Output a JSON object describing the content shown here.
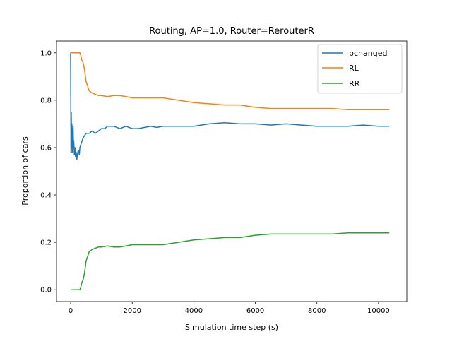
{
  "chart_data": {
    "type": "line",
    "title": "Routing, AP=1.0, Router=RerouterR",
    "xlabel": "Simulation time step (s)",
    "ylabel": "Proportion of cars",
    "xlim": [
      -460,
      10920
    ],
    "ylim": [
      -0.05,
      1.05
    ],
    "xticks": [
      0,
      2000,
      4000,
      6000,
      8000,
      10000
    ],
    "yticks": [
      0.0,
      0.2,
      0.4,
      0.6,
      0.8,
      1.0
    ],
    "xtick_labels": [
      "0",
      "2000",
      "4000",
      "6000",
      "8000",
      "10000"
    ],
    "ytick_labels": [
      "0.0",
      "0.2",
      "0.4",
      "0.6",
      "0.8",
      "1.0"
    ],
    "grid": false,
    "legend_position": "top-right",
    "series": [
      {
        "name": "pchanged",
        "color": "#1f77b4",
        "x": [
          0,
          10,
          20,
          30,
          40,
          50,
          60,
          70,
          80,
          90,
          100,
          120,
          140,
          160,
          180,
          200,
          220,
          250,
          280,
          300,
          350,
          400,
          450,
          500,
          600,
          700,
          800,
          900,
          1000,
          1100,
          1200,
          1400,
          1600,
          1800,
          2000,
          2200,
          2400,
          2600,
          2800,
          3000,
          3500,
          4000,
          4500,
          5000,
          5500,
          6000,
          6500,
          7000,
          7500,
          8000,
          8500,
          9000,
          9500,
          10000,
          10350
        ],
        "y": [
          1.0,
          0.58,
          0.75,
          0.6,
          0.7,
          0.58,
          0.66,
          0.6,
          0.69,
          0.6,
          0.63,
          0.57,
          0.6,
          0.56,
          0.58,
          0.55,
          0.57,
          0.59,
          0.57,
          0.6,
          0.62,
          0.64,
          0.65,
          0.66,
          0.66,
          0.67,
          0.66,
          0.67,
          0.68,
          0.68,
          0.69,
          0.69,
          0.68,
          0.69,
          0.68,
          0.68,
          0.685,
          0.69,
          0.685,
          0.69,
          0.69,
          0.69,
          0.7,
          0.705,
          0.7,
          0.7,
          0.695,
          0.7,
          0.695,
          0.69,
          0.69,
          0.69,
          0.695,
          0.69,
          0.69
        ]
      },
      {
        "name": "RL",
        "color": "#ff7f0e",
        "x": [
          0,
          100,
          200,
          300,
          330,
          360,
          400,
          450,
          500,
          550,
          600,
          700,
          800,
          900,
          1000,
          1200,
          1400,
          1600,
          1800,
          2000,
          2500,
          3000,
          3500,
          4000,
          4500,
          5000,
          5500,
          6000,
          6500,
          7000,
          7500,
          8000,
          8500,
          9000,
          9500,
          10000,
          10350
        ],
        "y": [
          1.0,
          1.0,
          1.0,
          1.0,
          0.99,
          0.97,
          0.96,
          0.93,
          0.88,
          0.86,
          0.84,
          0.83,
          0.825,
          0.82,
          0.82,
          0.815,
          0.82,
          0.82,
          0.815,
          0.81,
          0.81,
          0.81,
          0.8,
          0.79,
          0.785,
          0.78,
          0.78,
          0.77,
          0.765,
          0.765,
          0.765,
          0.765,
          0.765,
          0.76,
          0.76,
          0.76,
          0.76
        ]
      },
      {
        "name": "RR",
        "color": "#2ca02c",
        "x": [
          0,
          100,
          200,
          300,
          330,
          360,
          400,
          450,
          500,
          550,
          600,
          700,
          800,
          900,
          1000,
          1200,
          1400,
          1600,
          1800,
          2000,
          2500,
          3000,
          3500,
          4000,
          4500,
          5000,
          5500,
          6000,
          6500,
          7000,
          7500,
          8000,
          8500,
          9000,
          9500,
          10000,
          10350
        ],
        "y": [
          0.0,
          0.0,
          0.0,
          0.0,
          0.01,
          0.03,
          0.04,
          0.07,
          0.12,
          0.14,
          0.16,
          0.17,
          0.175,
          0.18,
          0.18,
          0.185,
          0.18,
          0.18,
          0.185,
          0.19,
          0.19,
          0.19,
          0.2,
          0.21,
          0.215,
          0.22,
          0.22,
          0.23,
          0.235,
          0.235,
          0.235,
          0.235,
          0.235,
          0.24,
          0.24,
          0.24,
          0.24
        ]
      }
    ]
  }
}
